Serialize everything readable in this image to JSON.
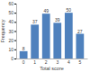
{
  "chart_data": {
    "type": "bar",
    "x_label": "Total score",
    "y_label": "Frequency",
    "categories": [
      "0",
      "1",
      "2",
      "3",
      "4",
      "5"
    ],
    "values": [
      8,
      37,
      49,
      39,
      50,
      27
    ],
    "color": "#4f81bd",
    "ylim": [
      0,
      60
    ],
    "yticks": [
      0,
      10,
      20,
      30,
      40,
      50,
      60
    ],
    "grid": false,
    "data_labels": true
  }
}
